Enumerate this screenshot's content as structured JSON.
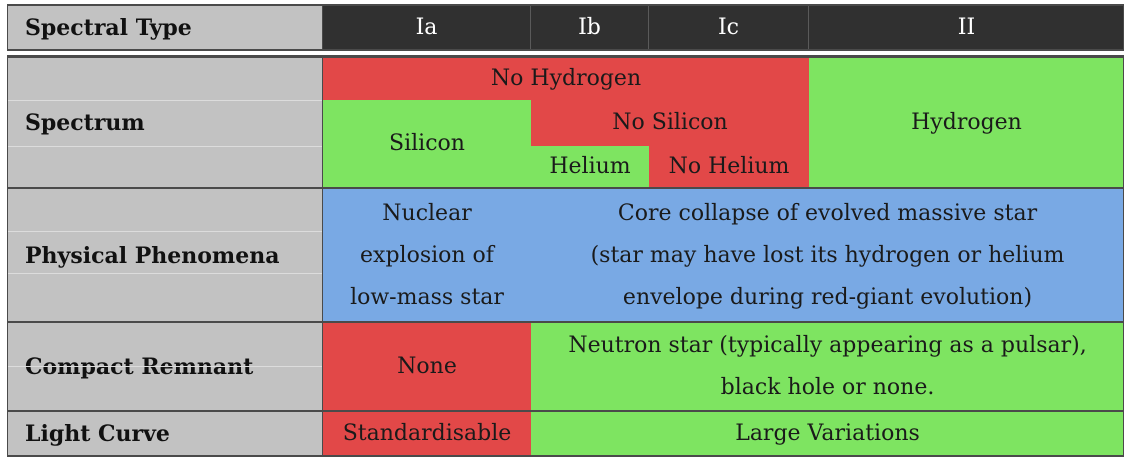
{
  "header": {
    "label": "Spectral Type",
    "types": [
      "Ia",
      "Ib",
      "Ic",
      "II"
    ]
  },
  "spectrum": {
    "label": "Spectrum",
    "no_hydrogen": "No Hydrogen",
    "hydrogen": "Hydrogen",
    "silicon": "Silicon",
    "no_silicon": "No Silicon",
    "helium": "Helium",
    "no_helium": "No Helium"
  },
  "phenomena": {
    "label": "Physical Phenomena",
    "ia_lines": [
      "Nuclear",
      "explosion of",
      "low-mass star"
    ],
    "other_lines": [
      "Core collapse of evolved massive star",
      "(star may have lost its hydrogen or helium",
      "envelope during red-giant evolution)"
    ]
  },
  "remnant": {
    "label": "Compact Remnant",
    "ia": "None",
    "other_lines": [
      "Neutron star (typically appearing as a pulsar),",
      "black hole or none."
    ]
  },
  "light_curve": {
    "label": "Light Curve",
    "ia": "Standardisable",
    "other": "Large Variations"
  },
  "colors": {
    "red": "#e24848",
    "green": "#7ee461",
    "blue": "#79a9e4",
    "label_gray": "#c2c2c2",
    "header_dark": "#303030"
  }
}
